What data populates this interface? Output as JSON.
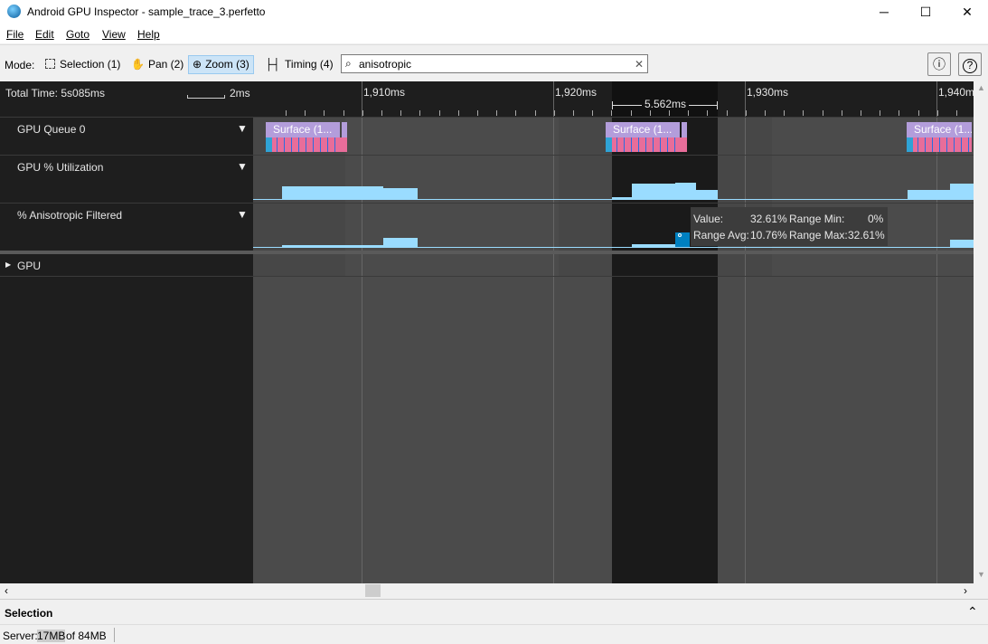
{
  "window": {
    "title": "Android GPU Inspector - sample_trace_3.perfetto",
    "minimize": "─",
    "maximize": "☐",
    "close": "✕"
  },
  "menu": [
    "File",
    "Edit",
    "Goto",
    "View",
    "Help"
  ],
  "toolbar": {
    "mode_label": "Mode:",
    "modes": [
      {
        "label": "Selection (1)",
        "icon": "selection-icon"
      },
      {
        "label": "Pan (2)",
        "icon": "hand-icon"
      },
      {
        "label": "Zoom (3)",
        "icon": "zoom-icon",
        "active": true
      },
      {
        "label": "Timing (4)",
        "icon": "timing-icon"
      }
    ],
    "search_value": "anisotropic",
    "clear": "✕",
    "info": "ⓘ",
    "help": "?"
  },
  "timeline": {
    "total_time": "Total Time: 5s085ms",
    "scale": "2ms",
    "ticks": [
      "1,910ms",
      "1,920ms",
      "1,930ms",
      "1,940ms"
    ],
    "selection_duration": "5.562ms"
  },
  "tracks": [
    {
      "name": "GPU Queue 0",
      "slice_label": "Surface (1..."
    },
    {
      "name": "GPU % Utilization"
    },
    {
      "name": "% Anisotropic Filtered"
    }
  ],
  "group": {
    "name": "GPU"
  },
  "tooltip": {
    "value_label": "Value:",
    "value": "32.61%",
    "min_label": "Range Min:",
    "min": "0%",
    "avg_label": "Range Avg:",
    "avg": "10.76%",
    "max_label": "Range Max:",
    "max": "32.61%"
  },
  "selection_panel": {
    "title": "Selection"
  },
  "status": {
    "server_label": "Server:",
    "used": "17MB",
    "of_total": " of 84MB"
  },
  "colors": {
    "slice": "#b39ddb",
    "subslice": "#e86d9a",
    "bar": "#9adcff",
    "selection": "#1a1a1a",
    "highlight": "#0080c0"
  }
}
